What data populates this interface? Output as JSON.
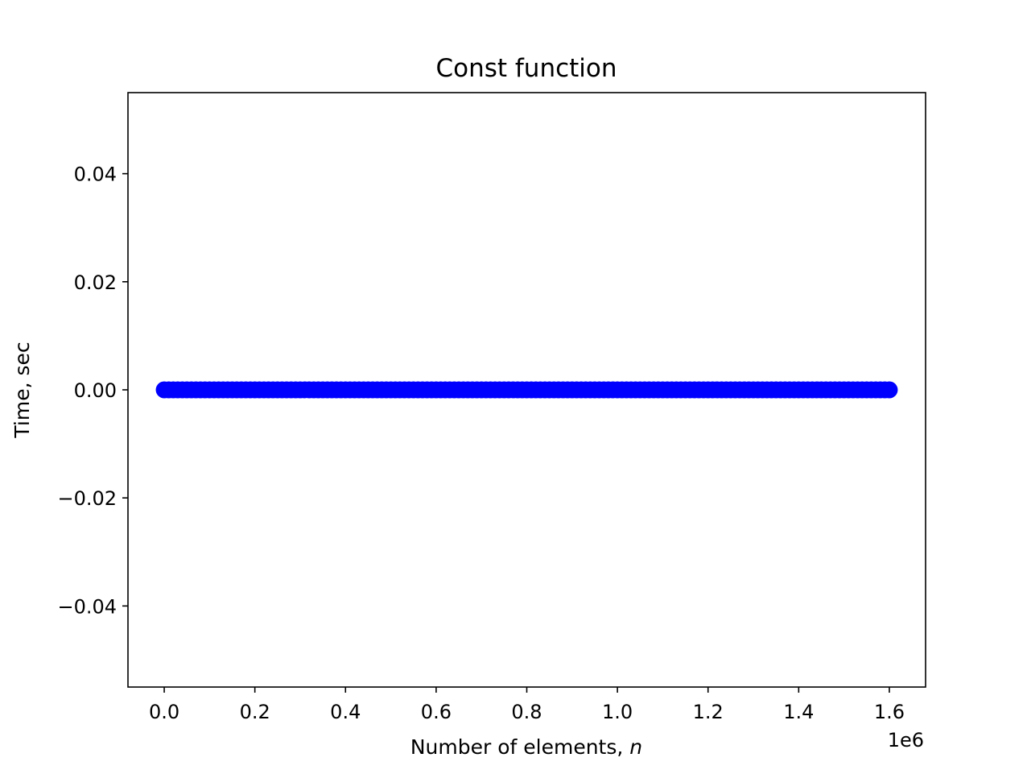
{
  "chart_data": {
    "type": "scatter",
    "title": "Const function",
    "xlabel": "Number of elements, ",
    "xlabel_var": "n",
    "ylabel": "Time, sec",
    "x_offset_label": "1e6",
    "xlim": [
      -0.08,
      1.68
    ],
    "ylim": [
      -0.055,
      0.055
    ],
    "x_ticks": [
      0.0,
      0.2,
      0.4,
      0.6,
      0.8,
      1.0,
      1.2,
      1.4,
      1.6
    ],
    "x_tick_labels": [
      "0.0",
      "0.2",
      "0.4",
      "0.6",
      "0.8",
      "1.0",
      "1.2",
      "1.4",
      "1.6"
    ],
    "y_ticks": [
      0.04,
      0.02,
      0.0,
      -0.02,
      -0.04
    ],
    "y_tick_labels": [
      "0.04",
      "0.02",
      "0.00",
      "−0.02",
      "−0.04"
    ],
    "grid": false,
    "series": [
      {
        "color": "#0000ff",
        "x_start": 0.0,
        "x_end": 1.6,
        "x_step": 0.01,
        "y_constant": 0.0
      }
    ]
  }
}
